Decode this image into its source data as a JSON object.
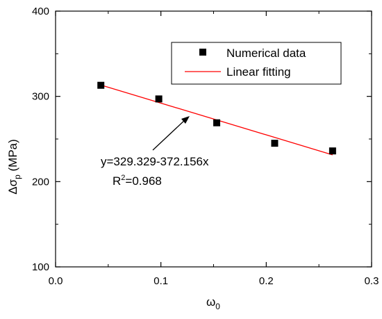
{
  "chart_data": {
    "type": "scatter",
    "title": "",
    "xlabel": "ω",
    "xlabel_sub": "0",
    "ylabel_prefix": "Δσ",
    "ylabel_sub": "p",
    "ylabel_suffix": " (MPa)",
    "xlim": [
      0.0,
      0.3
    ],
    "ylim": [
      100,
      400
    ],
    "xticks": [
      0.0,
      0.1,
      0.2,
      0.3
    ],
    "xtick_labels": [
      "0.0",
      "0.1",
      "0.2",
      "0.3"
    ],
    "yticks": [
      100,
      200,
      300,
      400
    ],
    "ytick_labels": [
      "100",
      "200",
      "300",
      "400"
    ],
    "grid": false,
    "legend_position": "top-right",
    "series": [
      {
        "name": "Numerical data",
        "kind": "scatter",
        "marker": "square",
        "color": "#000000",
        "x": [
          0.043,
          0.098,
          0.153,
          0.208,
          0.263
        ],
        "y": [
          313,
          297,
          269,
          245,
          236
        ]
      },
      {
        "name": "Linear fitting",
        "kind": "line",
        "color": "#ff0000",
        "intercept": 329.329,
        "slope": -372.156,
        "x": [
          0.043,
          0.263
        ],
        "y": [
          313.3,
          231.4
        ]
      }
    ],
    "annotation": {
      "equation": "y=329.329-372.156x",
      "r2_prefix": "R",
      "r2_sup": "2",
      "r2_suffix": "=0.968",
      "arrow_points_to": [
        0.128,
        281
      ]
    }
  }
}
